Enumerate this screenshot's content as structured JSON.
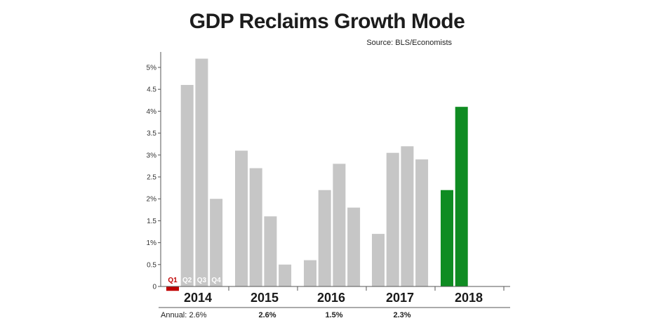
{
  "chart_data": {
    "type": "bar",
    "title": "GDP Reclaims Growth Mode",
    "subtitle": "Source: BLS/Economists",
    "ylim": [
      0,
      5.25
    ],
    "y_ticks": [
      "0",
      "0.5",
      "1%",
      "1.5",
      "2%",
      "2.5",
      "3%",
      "3.5",
      "4%",
      "4.5",
      "5%"
    ],
    "y_tick_values": [
      0,
      0.5,
      1,
      1.5,
      2,
      2.5,
      3,
      3.5,
      4,
      4.5,
      5
    ],
    "quarter_labels": [
      "Q1",
      "Q2",
      "Q3",
      "Q4"
    ],
    "groups": [
      {
        "year": "2014",
        "values": [
          -0.1,
          4.6,
          5.2,
          2.0
        ],
        "colors": [
          "#c00000",
          "#c6c6c6",
          "#c6c6c6",
          "#c6c6c6"
        ]
      },
      {
        "year": "2015",
        "values": [
          3.1,
          2.7,
          1.6,
          0.5
        ],
        "colors": [
          "#c6c6c6",
          "#c6c6c6",
          "#c6c6c6",
          "#c6c6c6"
        ]
      },
      {
        "year": "2016",
        "values": [
          0.6,
          2.2,
          2.8,
          1.8
        ],
        "colors": [
          "#c6c6c6",
          "#c6c6c6",
          "#c6c6c6",
          "#c6c6c6"
        ]
      },
      {
        "year": "2017",
        "values": [
          1.2,
          3.05,
          3.2,
          2.9
        ],
        "colors": [
          "#c6c6c6",
          "#c6c6c6",
          "#c6c6c6",
          "#c6c6c6"
        ]
      },
      {
        "year": "2018",
        "values": [
          2.2,
          4.1
        ],
        "colors": [
          "#0f8c22",
          "#0f8c22"
        ]
      }
    ],
    "annual_label": "Annual:",
    "annual_values": [
      "2.6%",
      "2.6%",
      "1.5%",
      "2.3%",
      ""
    ],
    "colors": {
      "grey": "#c6c6c6",
      "red": "#c00000",
      "green": "#0f8c22",
      "axis": "#555555"
    },
    "grid": false
  }
}
